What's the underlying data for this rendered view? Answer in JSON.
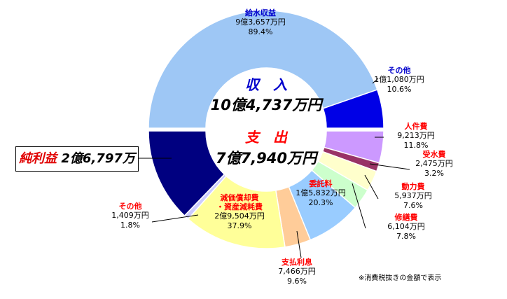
{
  "chart_data": [
    {
      "type": "pie",
      "variant": "donut-upper-half",
      "center_label": "収　入",
      "center_value": "10億4,737万円",
      "slices": [
        {
          "label": "給水収益",
          "amount": "9億3,657万円",
          "percent": "89.4%",
          "value": 89.4,
          "color": "#9ec7f5",
          "label_color": "#0000cc"
        },
        {
          "label": "その他",
          "amount": "1億1,080万円",
          "percent": "10.6%",
          "value": 10.6,
          "color": "#0000e6",
          "label_color": "#0000cc"
        }
      ]
    },
    {
      "type": "pie",
      "variant": "donut-lower-half",
      "center_label": "支　出",
      "center_value": "7億7,940万円",
      "slices": [
        {
          "label": "人件費",
          "amount": "9,213万円",
          "percent": "11.8%",
          "value": 11.8,
          "color": "#cc99ff",
          "label_color": "#ff0000"
        },
        {
          "label": "受水費",
          "amount": "2,475万円",
          "percent": "3.2%",
          "value": 3.2,
          "color": "#993366",
          "label_color": "#ff0000"
        },
        {
          "label": "動力費",
          "amount": "5,937万円",
          "percent": "7.6%",
          "value": 7.6,
          "color": "#ffffcc",
          "label_color": "#ff0000"
        },
        {
          "label": "修繕費",
          "amount": "6,104万円",
          "percent": "7.8%",
          "value": 7.8,
          "color": "#ccffcc",
          "label_color": "#ff0000"
        },
        {
          "label": "委託料",
          "amount": "1億5,832万円",
          "percent": "20.3%",
          "value": 20.3,
          "color": "#99ccff",
          "label_color": "#ff0000"
        },
        {
          "label": "支払利息",
          "amount": "7,466万円",
          "percent": "9.6%",
          "value": 9.6,
          "color": "#ffcc99",
          "label_color": "#ff0000"
        },
        {
          "label": "減価償却費・資産減耗費",
          "label_lines": [
            "減価償却費",
            "・資産減耗費"
          ],
          "amount": "2億9,504万円",
          "percent": "37.9%",
          "value": 37.9,
          "color": "#ffff99",
          "label_color": "#ff0000"
        },
        {
          "label": "その他",
          "amount": "1,409万円",
          "percent": "1.8%",
          "value": 1.8,
          "color": "#ccccff",
          "label_color": "#ff0000"
        }
      ],
      "net_profit": {
        "label": "純利益",
        "amount": "2億6,797万",
        "color": "#000080"
      }
    }
  ],
  "colors": {
    "income_title": "#0000cc",
    "expense_title": "#ff0000"
  },
  "footnote": "※消費税抜きの金額で表示"
}
